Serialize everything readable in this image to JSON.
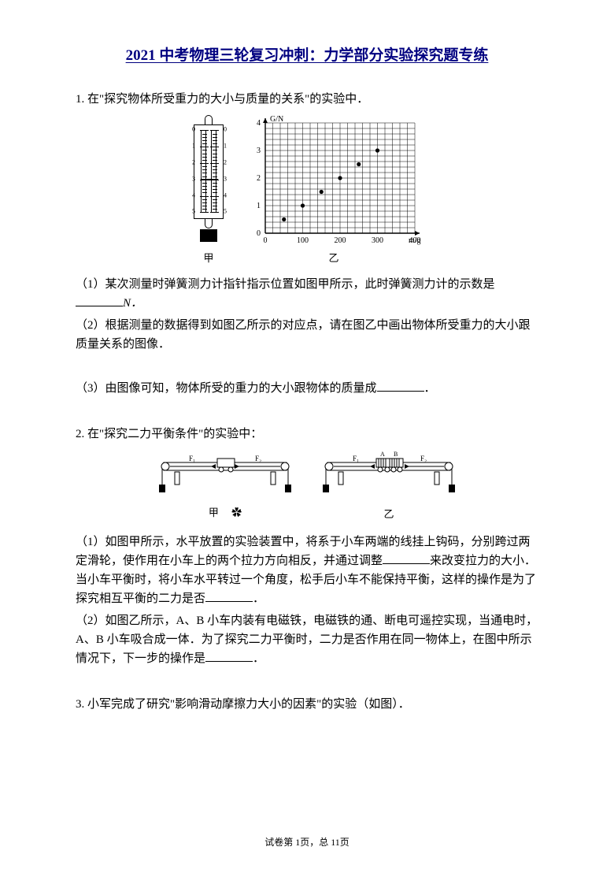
{
  "title": "2021 中考物理三轮复习冲刺：力学部分实验探究题专练",
  "title_color": "#000080",
  "q1": {
    "stem": "1. 在\"探究物体所受重力的大小与质量的关系\"的实验中．",
    "p1_a": "（1）某次测量时弹簧测力计指针指示位置如图甲所示，此时弹簧测力计的示数是",
    "p1_b": "N．",
    "p2": "（2）根据测量的数据得到如图乙所示的对应点，请在图乙中画出物体所受重力的大小跟质量关系的图像．",
    "p3_a": "（3）由图像可知，物体所受的重力的大小跟物体的质量成",
    "p3_b": "．",
    "cap_left": "甲",
    "cap_right": "乙",
    "chart": {
      "xlabel": "m/g",
      "ylabel": "G/N",
      "xticks": [
        0,
        100,
        200,
        300,
        400
      ],
      "yticks": [
        0,
        1,
        2,
        3,
        4
      ],
      "points_mg": [
        50,
        100,
        150,
        200,
        250,
        300
      ],
      "points_GN": [
        0.5,
        1.0,
        1.5,
        2.0,
        2.5,
        3.0
      ],
      "grid_color": "#000000",
      "point_color": "#000000",
      "axis_fontsize": 10
    },
    "scale": {
      "min": 0,
      "max": 5,
      "pointer_value": 3.0,
      "left_labels": [
        0,
        1,
        2,
        3,
        4,
        5
      ],
      "right_labels": [
        0,
        1,
        2,
        3,
        4,
        5
      ]
    }
  },
  "q2": {
    "stem": "2. 在\"探究二力平衡条件\"的实验中：",
    "labels": {
      "f1": "F₁",
      "f2": "F₂",
      "a": "A",
      "b": "B"
    },
    "decor_symbol": "✿",
    "cap_left": "甲",
    "cap_right": "乙",
    "p1_a": "（1）如图甲所示，水平放置的实验装置中，将系于小车两端的线挂上钩码，分别跨过两定滑轮，使作用在小车上的两个拉力方向相反，并通过调整",
    "p1_b": "来改变拉力的大小．当小车平衡时，将小车水平转过一个角度，松手后小车不能保持平衡，这样的操作是为了探究相互平衡的二力是否",
    "p1_c": "．",
    "p2_a": "（2）如图乙所示，A、B 小车内装有电磁铁，电磁铁的通、断电可遥控实现，当通电时，A、B 小车吸合成一体．为了探究二力平衡时，二力是否作用在同一物体上，在图中所示情况下，下一步的操作是",
    "p2_b": "．"
  },
  "q3": {
    "stem": "3. 小军完成了研究\"影响滑动摩擦力大小的因素\"的实验（如图）．"
  },
  "footer": {
    "a": "试卷第 ",
    "page": "1",
    "b": "页，总 ",
    "total": "11",
    "c": "页"
  }
}
